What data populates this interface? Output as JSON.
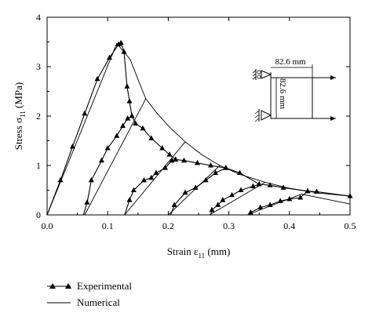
{
  "chart_data": {
    "type": "line",
    "xlabel": "Strain ε",
    "xlabel_sub": "11",
    "xlabel_unit": " (mm)",
    "ylabel": "Stress σ",
    "ylabel_sub": "11",
    "ylabel_unit": " (MPa)",
    "xlim": [
      0,
      0.5
    ],
    "ylim": [
      0,
      4
    ],
    "xticks": [
      0.0,
      0.1,
      0.2,
      0.3,
      0.4,
      0.5
    ],
    "xtick_labels": [
      "0.0",
      "0.1",
      "0.2",
      "0.3",
      "0.4",
      "0.5"
    ],
    "yticks": [
      0,
      1,
      2,
      3,
      4
    ],
    "ytick_labels": [
      "0",
      "1",
      "2",
      "3",
      "4"
    ],
    "grid": false,
    "legend_position": "bottom-left",
    "series": [
      {
        "name": "Experimental",
        "marker": "triangle",
        "segments": [
          [
            [
              0,
              0
            ],
            [
              0.022,
              0.7
            ],
            [
              0.042,
              1.38
            ],
            [
              0.062,
              2.05
            ],
            [
              0.083,
              2.75
            ],
            [
              0.103,
              3.18
            ],
            [
              0.118,
              3.45
            ],
            [
              0.122,
              3.48
            ],
            [
              0.127,
              3.3
            ],
            [
              0.132,
              2.6
            ],
            [
              0.136,
              2.3
            ],
            [
              0.14,
              2.0
            ],
            [
              0.146,
              1.85
            ],
            [
              0.158,
              1.75
            ],
            [
              0.172,
              1.55
            ],
            [
              0.19,
              1.35
            ],
            [
              0.202,
              1.22
            ],
            [
              0.212,
              1.12
            ],
            [
              0.226,
              1.1
            ],
            [
              0.248,
              1.05
            ],
            [
              0.27,
              1.0
            ],
            [
              0.295,
              0.95
            ],
            [
              0.318,
              0.85
            ],
            [
              0.35,
              0.62
            ],
            [
              0.368,
              0.6
            ],
            [
              0.39,
              0.55
            ],
            [
              0.43,
              0.48
            ],
            [
              0.445,
              0.47
            ],
            [
              0.5,
              0.38
            ]
          ],
          [
            [
              0.06,
              0
            ],
            [
              0.066,
              0.25
            ],
            [
              0.073,
              0.7
            ],
            [
              0.09,
              1.1
            ],
            [
              0.1,
              1.35
            ],
            [
              0.115,
              1.6
            ],
            [
              0.125,
              1.8
            ],
            [
              0.133,
              1.95
            ],
            [
              0.14,
              2.0
            ]
          ],
          [
            [
              0.128,
              0
            ],
            [
              0.136,
              0.3
            ],
            [
              0.143,
              0.5
            ],
            [
              0.16,
              0.7
            ],
            [
              0.172,
              0.75
            ],
            [
              0.18,
              0.85
            ],
            [
              0.195,
              0.95
            ],
            [
              0.206,
              1.1
            ],
            [
              0.212,
              1.12
            ]
          ],
          [
            [
              0.204,
              0
            ],
            [
              0.21,
              0.2
            ],
            [
              0.228,
              0.45
            ],
            [
              0.245,
              0.55
            ],
            [
              0.262,
              0.7
            ],
            [
              0.278,
              0.85
            ],
            [
              0.295,
              0.95
            ]
          ],
          [
            [
              0.27,
              0
            ],
            [
              0.272,
              0.1
            ],
            [
              0.282,
              0.2
            ],
            [
              0.29,
              0.3
            ],
            [
              0.305,
              0.4
            ],
            [
              0.32,
              0.5
            ],
            [
              0.34,
              0.58
            ],
            [
              0.35,
              0.62
            ]
          ],
          [
            [
              0.332,
              0
            ],
            [
              0.336,
              0.05
            ],
            [
              0.352,
              0.15
            ],
            [
              0.368,
              0.2
            ],
            [
              0.385,
              0.28
            ],
            [
              0.4,
              0.32
            ],
            [
              0.418,
              0.35
            ],
            [
              0.43,
              0.48
            ]
          ]
        ]
      },
      {
        "name": "Numerical",
        "marker": "none",
        "segments": [
          [
            [
              0,
              0
            ],
            [
              0.115,
              3.47
            ],
            [
              0.137,
              3.15
            ],
            [
              0.153,
              2.65
            ],
            [
              0.163,
              2.35
            ],
            [
              0.182,
              2.05
            ],
            [
              0.202,
              1.78
            ],
            [
              0.228,
              1.48
            ],
            [
              0.255,
              1.22
            ],
            [
              0.285,
              1.0
            ],
            [
              0.318,
              0.82
            ],
            [
              0.36,
              0.66
            ],
            [
              0.4,
              0.54
            ],
            [
              0.45,
              0.44
            ],
            [
              0.5,
              0.38
            ]
          ],
          [
            [
              0.062,
              0
            ],
            [
              0.163,
              2.35
            ]
          ],
          [
            [
              0.128,
              0
            ],
            [
              0.228,
              1.48
            ]
          ],
          [
            [
              0.2,
              0
            ],
            [
              0.285,
              1.0
            ]
          ],
          [
            [
              0.268,
              0
            ],
            [
              0.36,
              0.66
            ]
          ],
          [
            [
              0.33,
              0
            ],
            [
              0.42,
              0.42
            ],
            [
              0.5,
              0.22
            ]
          ]
        ]
      }
    ],
    "annotations": {
      "dim_horizontal": "82.6 mm",
      "dim_vertical": "82.6 mm"
    }
  }
}
